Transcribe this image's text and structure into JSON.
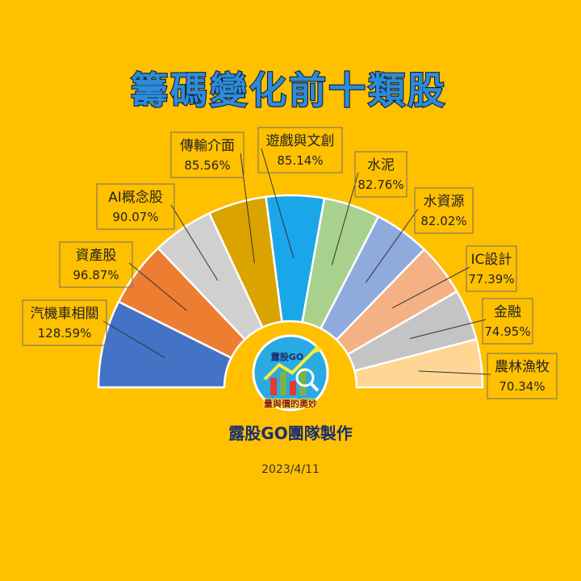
{
  "title": "籌碼變化前十類股",
  "team_label": "露股GO團隊製作",
  "date": "2023/4/11",
  "logo": {
    "top_text": "露股GO",
    "bottom_text": "量與價的奧妙"
  },
  "chart_data": {
    "type": "pie",
    "variant": "half-doughnut",
    "title": "籌碼變化前十類股",
    "legend": "none",
    "categories": [
      "汽機車相關",
      "資產股",
      "AI概念股",
      "傳輸介面",
      "遊戲與文創",
      "水泥",
      "水資源",
      "IC設計",
      "金融",
      "農林漁牧"
    ],
    "values": [
      128.59,
      96.87,
      90.07,
      85.56,
      85.14,
      82.76,
      82.02,
      77.39,
      74.95,
      70.34
    ],
    "value_labels": [
      "128.59%",
      "96.87%",
      "90.07%",
      "85.56%",
      "85.14%",
      "82.76%",
      "82.02%",
      "77.39%",
      "74.95%",
      "70.34%"
    ],
    "colors": [
      "#4472C4",
      "#ED7D31",
      "#D0D0D0",
      "#DAA300",
      "#1AA7E9",
      "#A9D18E",
      "#8FAADC",
      "#F4B183",
      "#C4C4C4",
      "#FFD694"
    ]
  }
}
